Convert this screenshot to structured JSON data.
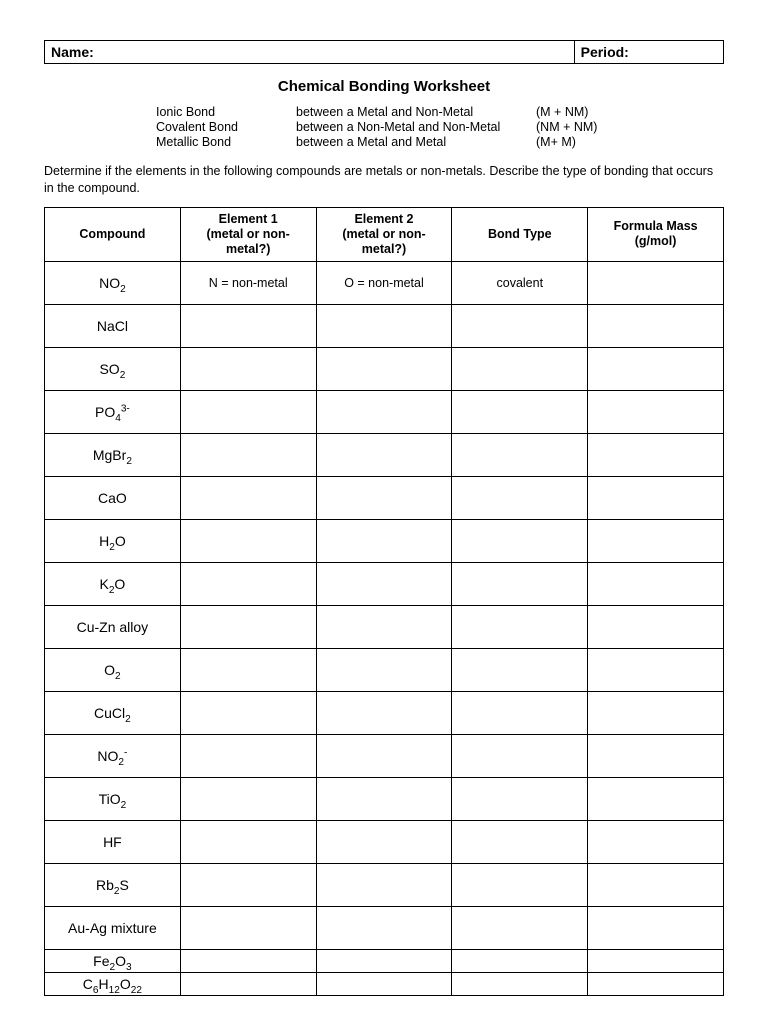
{
  "header": {
    "name_label": "Name:",
    "period_label": "Period:"
  },
  "title": "Chemical Bonding Worksheet",
  "bond_defs": [
    {
      "name": "Ionic Bond",
      "desc": "between a Metal and Non-Metal",
      "short": "(M + NM)"
    },
    {
      "name": "Covalent Bond",
      "desc": "between a Non-Metal and Non-Metal",
      "short": "(NM + NM)"
    },
    {
      "name": "Metallic Bond",
      "desc": "between a Metal and Metal",
      "short": "(M+ M)"
    }
  ],
  "instructions": "Determine if the elements in the following compounds are metals or non-metals.  Describe the type of bonding that occurs in the compound.",
  "columns": [
    "Compound",
    "Element 1 (metal or non-metal?)",
    "Element 2 (metal or non-metal?)",
    "Bond Type",
    "Formula Mass (g/mol)"
  ],
  "col_widths_pct": [
    20,
    20,
    20,
    20,
    20
  ],
  "rows": [
    {
      "compound_html": "NO<span class='sub'>2</span>",
      "el1": "N = non-metal",
      "el2": "O = non-metal",
      "bond": "covalent",
      "mass": ""
    },
    {
      "compound_html": "NaCl",
      "el1": "",
      "el2": "",
      "bond": "",
      "mass": ""
    },
    {
      "compound_html": "SO<span class='sub'>2</span>",
      "el1": "",
      "el2": "",
      "bond": "",
      "mass": ""
    },
    {
      "compound_html": "PO<span class='sub'>4</span><span class='sup'>3-</span>",
      "el1": "",
      "el2": "",
      "bond": "",
      "mass": ""
    },
    {
      "compound_html": "MgBr<span class='sub'>2</span>",
      "el1": "",
      "el2": "",
      "bond": "",
      "mass": ""
    },
    {
      "compound_html": "CaO",
      "el1": "",
      "el2": "",
      "bond": "",
      "mass": ""
    },
    {
      "compound_html": "H<span class='sub'>2</span>O",
      "el1": "",
      "el2": "",
      "bond": "",
      "mass": ""
    },
    {
      "compound_html": "K<span class='sub'>2</span>O",
      "el1": "",
      "el2": "",
      "bond": "",
      "mass": ""
    },
    {
      "compound_html": "Cu-Zn alloy",
      "el1": "",
      "el2": "",
      "bond": "",
      "mass": ""
    },
    {
      "compound_html": "O<span class='sub'>2</span>",
      "el1": "",
      "el2": "",
      "bond": "",
      "mass": ""
    },
    {
      "compound_html": "CuCl<span class='sub'>2</span>",
      "el1": "",
      "el2": "",
      "bond": "",
      "mass": ""
    },
    {
      "compound_html": "NO<span class='sub'>2</span><span class='sup'>-</span>",
      "el1": "",
      "el2": "",
      "bond": "",
      "mass": ""
    },
    {
      "compound_html": "TiO<span class='sub'>2</span>",
      "el1": "",
      "el2": "",
      "bond": "",
      "mass": ""
    },
    {
      "compound_html": "HF",
      "el1": "",
      "el2": "",
      "bond": "",
      "mass": ""
    },
    {
      "compound_html": "Rb<span class='sub'>2</span>S",
      "el1": "",
      "el2": "",
      "bond": "",
      "mass": ""
    },
    {
      "compound_html": "Au-Ag mixture",
      "el1": "",
      "el2": "",
      "bond": "",
      "mass": ""
    },
    {
      "compound_html": "Fe<span class='sub'>2</span>O<span class='sub'>3</span>",
      "el1": "",
      "el2": "",
      "bond": "",
      "mass": "",
      "short": true
    },
    {
      "compound_html": "C<span class='sub'>6</span>H<span class='sub'>12</span>O<span class='sub'>22</span>",
      "el1": "",
      "el2": "",
      "bond": "",
      "mass": "",
      "short": true
    }
  ]
}
